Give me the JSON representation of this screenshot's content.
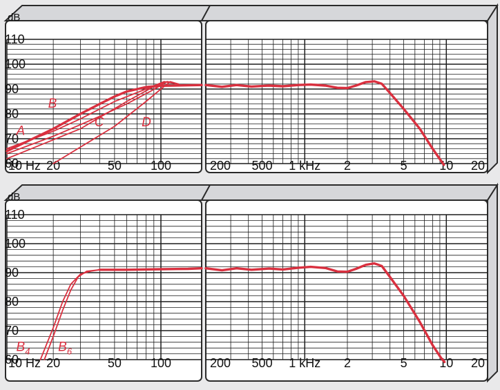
{
  "colors": {
    "curve": "#d9303f",
    "grid": "#1c1c1c",
    "panel": "#ffffff",
    "frame": "#2a2a2a",
    "side": "#d6d7da",
    "page": "#e9e9ea"
  },
  "chart_data": [
    {
      "type": "line",
      "y_unit": "dB",
      "ylim": [
        60,
        110
      ],
      "y_ticks": [
        "60",
        "70",
        "80",
        "90",
        "100",
        "110"
      ],
      "x_scale": "log",
      "xlim_hz": [
        10,
        20000
      ],
      "x_ticks_left": [
        {
          "hz": 10,
          "label": "10 Hz"
        },
        {
          "hz": 20,
          "label": "20"
        },
        {
          "hz": 50,
          "label": "50"
        },
        {
          "hz": 100,
          "label": "100"
        }
      ],
      "x_ticks_right": [
        {
          "hz": 200,
          "label": "200"
        },
        {
          "hz": 500,
          "label": "500"
        },
        {
          "hz": 1000,
          "label": "1 kHz"
        },
        {
          "hz": 2000,
          "label": "2"
        },
        {
          "hz": 5000,
          "label": "5"
        },
        {
          "hz": 10000,
          "label": "10"
        },
        {
          "hz": 20000,
          "label": "20"
        }
      ],
      "grid": true,
      "series": [
        {
          "name": "A",
          "label_at": {
            "hz": 11.5,
            "db": 71.5
          },
          "points": [
            [
              10,
              64
            ],
            [
              20,
              71
            ],
            [
              40,
              79
            ],
            [
              60,
              84
            ],
            [
              85,
              89
            ],
            [
              110,
              93
            ],
            [
              130,
              92
            ]
          ]
        },
        {
          "name": "B",
          "label_at": {
            "hz": 18.5,
            "db": 82.5
          },
          "points": [
            [
              10,
              66
            ],
            [
              20,
              73
            ],
            [
              30,
              78
            ],
            [
              50,
              85
            ],
            [
              80,
              90
            ],
            [
              105,
              93
            ],
            [
              130,
              92
            ]
          ]
        },
        {
          "name": "C",
          "label_at": {
            "hz": 37,
            "db": 75
          },
          "points": [
            [
              10,
              62
            ],
            [
              30,
              74
            ],
            [
              60,
              85
            ],
            [
              90,
              91
            ],
            [
              110,
              93
            ],
            [
              130,
              92
            ]
          ]
        },
        {
          "name": "D",
          "label_at": {
            "hz": 75,
            "db": 75
          },
          "points": [
            [
              20,
              60
            ],
            [
              50,
              75
            ],
            [
              80,
              85
            ],
            [
              100,
              90
            ],
            [
              115,
              93
            ],
            [
              130,
              92
            ]
          ]
        },
        {
          "name": "",
          "points": [
            [
              10,
              65
            ],
            [
              20,
              74
            ],
            [
              30,
              80
            ],
            [
              40,
              84
            ],
            [
              50,
              87
            ],
            [
              60,
              89
            ],
            [
              80,
              90.8
            ],
            [
              100,
              91.3
            ],
            [
              150,
              91.5
            ],
            [
              200,
              91.6
            ],
            [
              260,
              90.9
            ],
            [
              330,
              91.6
            ],
            [
              420,
              91
            ],
            [
              560,
              91.4
            ],
            [
              700,
              91.1
            ],
            [
              900,
              91.6
            ],
            [
              1100,
              91.8
            ],
            [
              1400,
              91.4
            ],
            [
              1700,
              90.5
            ],
            [
              2000,
              90.4
            ],
            [
              2300,
              91.4
            ],
            [
              2700,
              92.8
            ],
            [
              3100,
              93.1
            ],
            [
              3500,
              92.1
            ],
            [
              4000,
              88.4
            ],
            [
              5000,
              82
            ],
            [
              6500,
              74
            ],
            [
              8000,
              66
            ],
            [
              9200,
              61
            ],
            [
              9600,
              59.5
            ]
          ]
        }
      ]
    },
    {
      "type": "line",
      "y_unit": "dB",
      "ylim": [
        60,
        110
      ],
      "y_ticks": [
        "60",
        "70",
        "80",
        "90",
        "100",
        "110"
      ],
      "x_scale": "log",
      "xlim_hz": [
        10,
        20000
      ],
      "x_ticks_left": [
        {
          "hz": 10,
          "label": "10 Hz"
        },
        {
          "hz": 20,
          "label": "20"
        },
        {
          "hz": 50,
          "label": "50"
        },
        {
          "hz": 100,
          "label": "100"
        }
      ],
      "x_ticks_right": [
        {
          "hz": 200,
          "label": "200"
        },
        {
          "hz": 500,
          "label": "500"
        },
        {
          "hz": 1000,
          "label": "1 kHz"
        },
        {
          "hz": 2000,
          "label": "2"
        },
        {
          "hz": 5000,
          "label": "5"
        },
        {
          "hz": 10000,
          "label": "10"
        },
        {
          "hz": 20000,
          "label": "20"
        }
      ],
      "grid": true,
      "series": [
        {
          "name": "B4",
          "label": "B",
          "sub": "4",
          "label_at": {
            "hz": 11.5,
            "db": 63
          },
          "points": [
            [
              16.5,
              60
            ],
            [
              20,
              71
            ],
            [
              23,
              80
            ],
            [
              26,
              86
            ],
            [
              30,
              89.5
            ],
            [
              35,
              90.5
            ],
            [
              40,
              91
            ]
          ]
        },
        {
          "name": "B6",
          "label": "B",
          "sub": "6",
          "label_at": {
            "hz": 21.5,
            "db": 63
          },
          "points": [
            [
              17.5,
              60
            ],
            [
              20,
              68
            ],
            [
              23,
              77
            ],
            [
              26,
              84
            ],
            [
              29,
              88.5
            ],
            [
              33,
              90.5
            ],
            [
              40,
              91
            ]
          ]
        },
        {
          "name": "",
          "points": [
            [
              40,
              91
            ],
            [
              60,
              91
            ],
            [
              100,
              91.2
            ],
            [
              150,
              91.3
            ],
            [
              200,
              91.5
            ],
            [
              260,
              90.8
            ],
            [
              330,
              91.5
            ],
            [
              420,
              91
            ],
            [
              560,
              91.4
            ],
            [
              700,
              91.1
            ],
            [
              900,
              91.7
            ],
            [
              1100,
              92
            ],
            [
              1400,
              91.6
            ],
            [
              1700,
              90.4
            ],
            [
              2000,
              90.3
            ],
            [
              2300,
              91.3
            ],
            [
              2700,
              92.7
            ],
            [
              3100,
              93.2
            ],
            [
              3500,
              92.3
            ],
            [
              4000,
              88.5
            ],
            [
              5000,
              82
            ],
            [
              6500,
              73
            ],
            [
              8000,
              65
            ],
            [
              9200,
              60.5
            ],
            [
              9700,
              59.2
            ]
          ]
        }
      ]
    }
  ]
}
